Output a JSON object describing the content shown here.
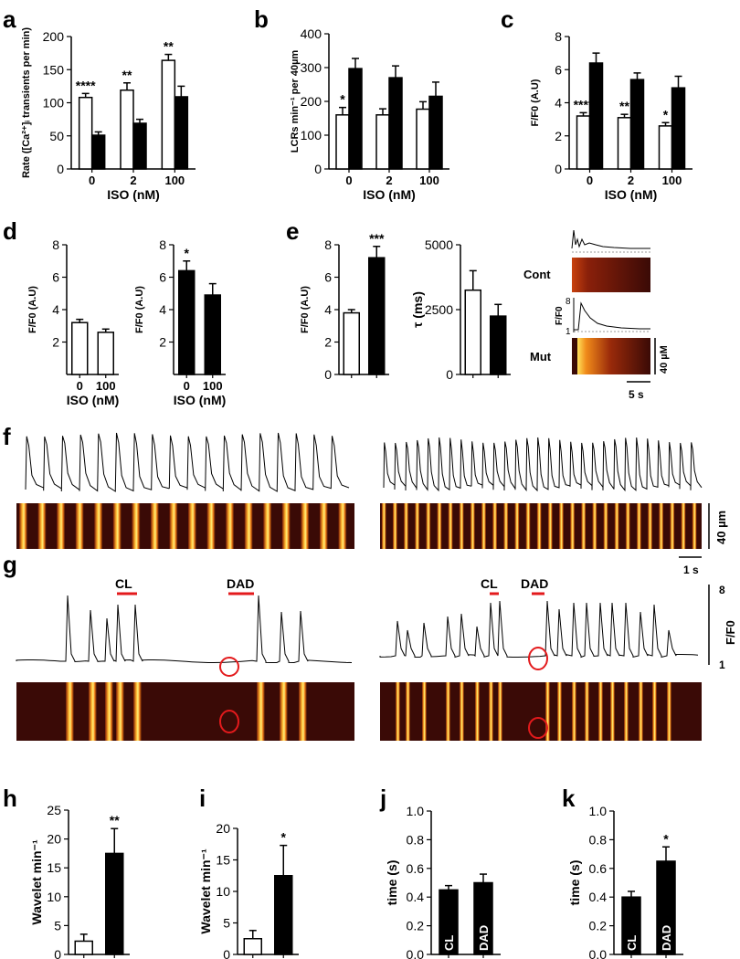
{
  "figure": {
    "panel_letters": [
      "a",
      "b",
      "c",
      "d",
      "e",
      "f",
      "g",
      "h",
      "i",
      "j",
      "k"
    ],
    "scale_labels": {
      "time_1s": "1 s",
      "time_5s": "5 s",
      "space_40um": "40 µm",
      "space_40uM": "40 µM",
      "ff0_top": "8",
      "ff0_bottom": "1",
      "ff0_label": "F/F0",
      "e_trace_top": "8",
      "e_trace_bottom": "1",
      "e_trace_label": "F/F0"
    },
    "trace_labels": {
      "cont": "Cont",
      "mut": "Mut",
      "cl": "CL",
      "dad": "DAD"
    },
    "colors": {
      "control_bar": "#ffffff",
      "mutant_bar": "#000000",
      "marker_red": "#e31a1c",
      "linescan_dark": "#3a0a06",
      "linescan_bright": "#ffe14a"
    }
  },
  "chart_data": [
    {
      "id": "a",
      "type": "bar",
      "categories": [
        "0",
        "2",
        "100"
      ],
      "xlabel": "ISO (nM)",
      "ylabel": "Rate ([Ca²⁺]ᵢ transients per min)",
      "ylim": [
        0,
        200
      ],
      "yticks": [
        "0",
        "50",
        "100",
        "150",
        "200"
      ],
      "series": [
        {
          "values": [
            108,
            119,
            164
          ],
          "errors": [
            6,
            11,
            9
          ],
          "fill": "white"
        },
        {
          "values": [
            51,
            69,
            109
          ],
          "errors": [
            5,
            6,
            16
          ],
          "fill": "black"
        }
      ],
      "annotations": [
        "****",
        "**",
        "**"
      ]
    },
    {
      "id": "b",
      "type": "bar",
      "categories": [
        "0",
        "2",
        "100"
      ],
      "xlabel": "ISO (nM)",
      "ylabel": "LCRs min⁻¹ per 40µm",
      "ylim": [
        0,
        400
      ],
      "yticks": [
        "0",
        "100",
        "200",
        "300",
        "400"
      ],
      "series": [
        {
          "values": [
            160,
            160,
            177
          ],
          "errors": [
            22,
            18,
            22
          ],
          "fill": "white"
        },
        {
          "values": [
            297,
            270,
            215
          ],
          "errors": [
            30,
            35,
            42
          ],
          "fill": "black"
        }
      ],
      "annotations": [
        "*",
        "",
        ""
      ]
    },
    {
      "id": "c",
      "type": "bar",
      "categories": [
        "0",
        "2",
        "100"
      ],
      "xlabel": "ISO (nM)",
      "ylabel": "F/F0 (A.U)",
      "ylim": [
        0,
        8
      ],
      "yticks": [
        "0",
        "2",
        "4",
        "6",
        "8"
      ],
      "series": [
        {
          "values": [
            3.2,
            3.1,
            2.6
          ],
          "errors": [
            0.2,
            0.2,
            0.2
          ],
          "fill": "white"
        },
        {
          "values": [
            6.4,
            5.4,
            4.9
          ],
          "errors": [
            0.6,
            0.4,
            0.7
          ],
          "fill": "black"
        }
      ],
      "annotations": [
        "****",
        "**",
        "*"
      ]
    },
    {
      "id": "d1",
      "type": "bar",
      "categories": [
        "0",
        "100"
      ],
      "xlabel": "ISO (nM)",
      "ylabel": "F/F0 (A.U)",
      "ylim": [
        0,
        8
      ],
      "yticks": [
        "2",
        "4",
        "6",
        "8"
      ],
      "series": [
        {
          "values": [
            3.2,
            2.6
          ],
          "errors": [
            0.2,
            0.2
          ],
          "fill": "white"
        }
      ],
      "annotations": []
    },
    {
      "id": "d2",
      "type": "bar",
      "categories": [
        "0",
        "100"
      ],
      "xlabel": "ISO (nM)",
      "ylabel": "F/F0 (A.U)",
      "ylim": [
        0,
        8
      ],
      "yticks": [
        "2",
        "4",
        "6",
        "8"
      ],
      "series": [
        {
          "values": [
            6.4,
            4.9
          ],
          "errors": [
            0.6,
            0.7
          ],
          "fill": "black"
        }
      ],
      "annotations": [
        "*"
      ]
    },
    {
      "id": "e1",
      "type": "bar",
      "categories": [
        "",
        ""
      ],
      "xlabel": "",
      "ylabel": "F/F0 (A.U)",
      "ylim": [
        0,
        8
      ],
      "yticks": [
        "0",
        "2",
        "4",
        "6",
        "8"
      ],
      "series": [
        {
          "values": [
            3.8,
            7.2
          ],
          "errors": [
            0.2,
            0.7
          ],
          "fills": [
            "white",
            "black"
          ]
        }
      ],
      "annotations": [
        "***"
      ]
    },
    {
      "id": "e2",
      "type": "bar",
      "categories": [
        "",
        ""
      ],
      "xlabel": "",
      "ylabel": "τ (ms)",
      "ylim": [
        0,
        5000
      ],
      "yticks": [
        "0",
        "2500",
        "5000"
      ],
      "series": [
        {
          "values": [
            3250,
            2250
          ],
          "errors": [
            750,
            450
          ],
          "fills": [
            "white",
            "black"
          ]
        }
      ],
      "annotations": []
    },
    {
      "id": "h",
      "type": "bar",
      "categories": [
        "",
        ""
      ],
      "xlabel": "",
      "ylabel": "Wavelet min⁻¹",
      "ylim": [
        0,
        25
      ],
      "yticks": [
        "0",
        "5",
        "10",
        "15",
        "20",
        "25"
      ],
      "series": [
        {
          "values": [
            2.3,
            17.5
          ],
          "errors": [
            1.2,
            4.3
          ],
          "fills": [
            "white",
            "black"
          ]
        }
      ],
      "annotations": [
        "**"
      ]
    },
    {
      "id": "i",
      "type": "bar",
      "categories": [
        "",
        ""
      ],
      "xlabel": "",
      "ylabel": "Wavelet min⁻¹",
      "ylim": [
        0,
        20
      ],
      "yticks": [
        "0",
        "5",
        "10",
        "15",
        "20"
      ],
      "series": [
        {
          "values": [
            2.5,
            12.5
          ],
          "errors": [
            1.3,
            4.8
          ],
          "fills": [
            "white",
            "black"
          ]
        }
      ],
      "annotations": [
        "*"
      ]
    },
    {
      "id": "j",
      "type": "bar",
      "categories": [
        "CL",
        "DAD"
      ],
      "xlabel": "",
      "ylabel": "time (s)",
      "ylim": [
        0,
        1.0
      ],
      "yticks": [
        "0.0",
        "0.2",
        "0.4",
        "0.6",
        "0.8",
        "1.0"
      ],
      "series": [
        {
          "values": [
            0.45,
            0.5
          ],
          "errors": [
            0.03,
            0.06
          ],
          "fills": [
            "black",
            "black"
          ]
        }
      ],
      "annotations": []
    },
    {
      "id": "k",
      "type": "bar",
      "categories": [
        "CL",
        "DAD"
      ],
      "xlabel": "",
      "ylabel": "time (s)",
      "ylim": [
        0,
        1.0
      ],
      "yticks": [
        "0.0",
        "0.2",
        "0.4",
        "0.6",
        "0.8",
        "1.0"
      ],
      "series": [
        {
          "values": [
            0.4,
            0.65
          ],
          "errors": [
            0.04,
            0.1
          ],
          "fills": [
            "black",
            "black"
          ]
        }
      ],
      "annotations": [
        "*"
      ]
    }
  ]
}
